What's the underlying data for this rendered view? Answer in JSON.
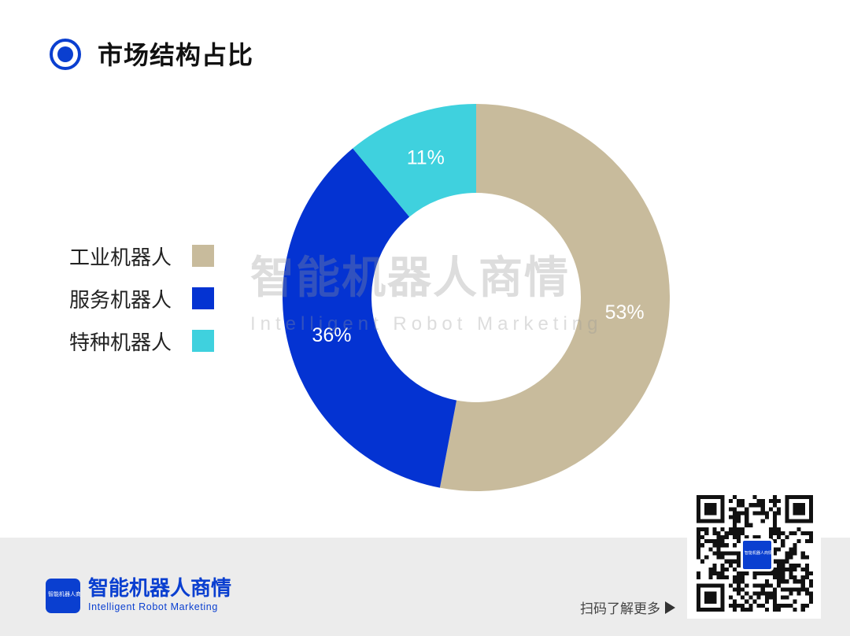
{
  "header": {
    "title": "市场结构占比"
  },
  "chart_data": {
    "type": "pie",
    "variant": "donut",
    "categories": [
      "工业机器人",
      "服务机器人",
      "特种机器人"
    ],
    "values": [
      53,
      36,
      11
    ],
    "data_labels": [
      "53%",
      "36%",
      "11%"
    ],
    "unit": "%",
    "colors": [
      "#c8bb9c",
      "#0433d2",
      "#3fd1de"
    ],
    "legend_placement": "left",
    "start_angle": "top",
    "direction": "clockwise"
  },
  "legend": {
    "items": [
      {
        "label": "工业机器人",
        "color": "#c8bb9c"
      },
      {
        "label": "服务机器人",
        "color": "#0433d2"
      },
      {
        "label": "特种机器人",
        "color": "#3fd1de"
      }
    ]
  },
  "watermark": {
    "title": "智能机器人商情",
    "subtitle": "Intelligent Robot Marketing"
  },
  "footer": {
    "logo_text": "智能机器人商情",
    "brand_title": "智能机器人商情",
    "brand_subtitle": "Intelligent Robot Marketing",
    "scan_text": "扫码了解更多",
    "qr_logo_text": "智能机器人商情"
  },
  "colors": {
    "brand_blue": "#0a3fd0",
    "footer_background": "#ececec"
  }
}
